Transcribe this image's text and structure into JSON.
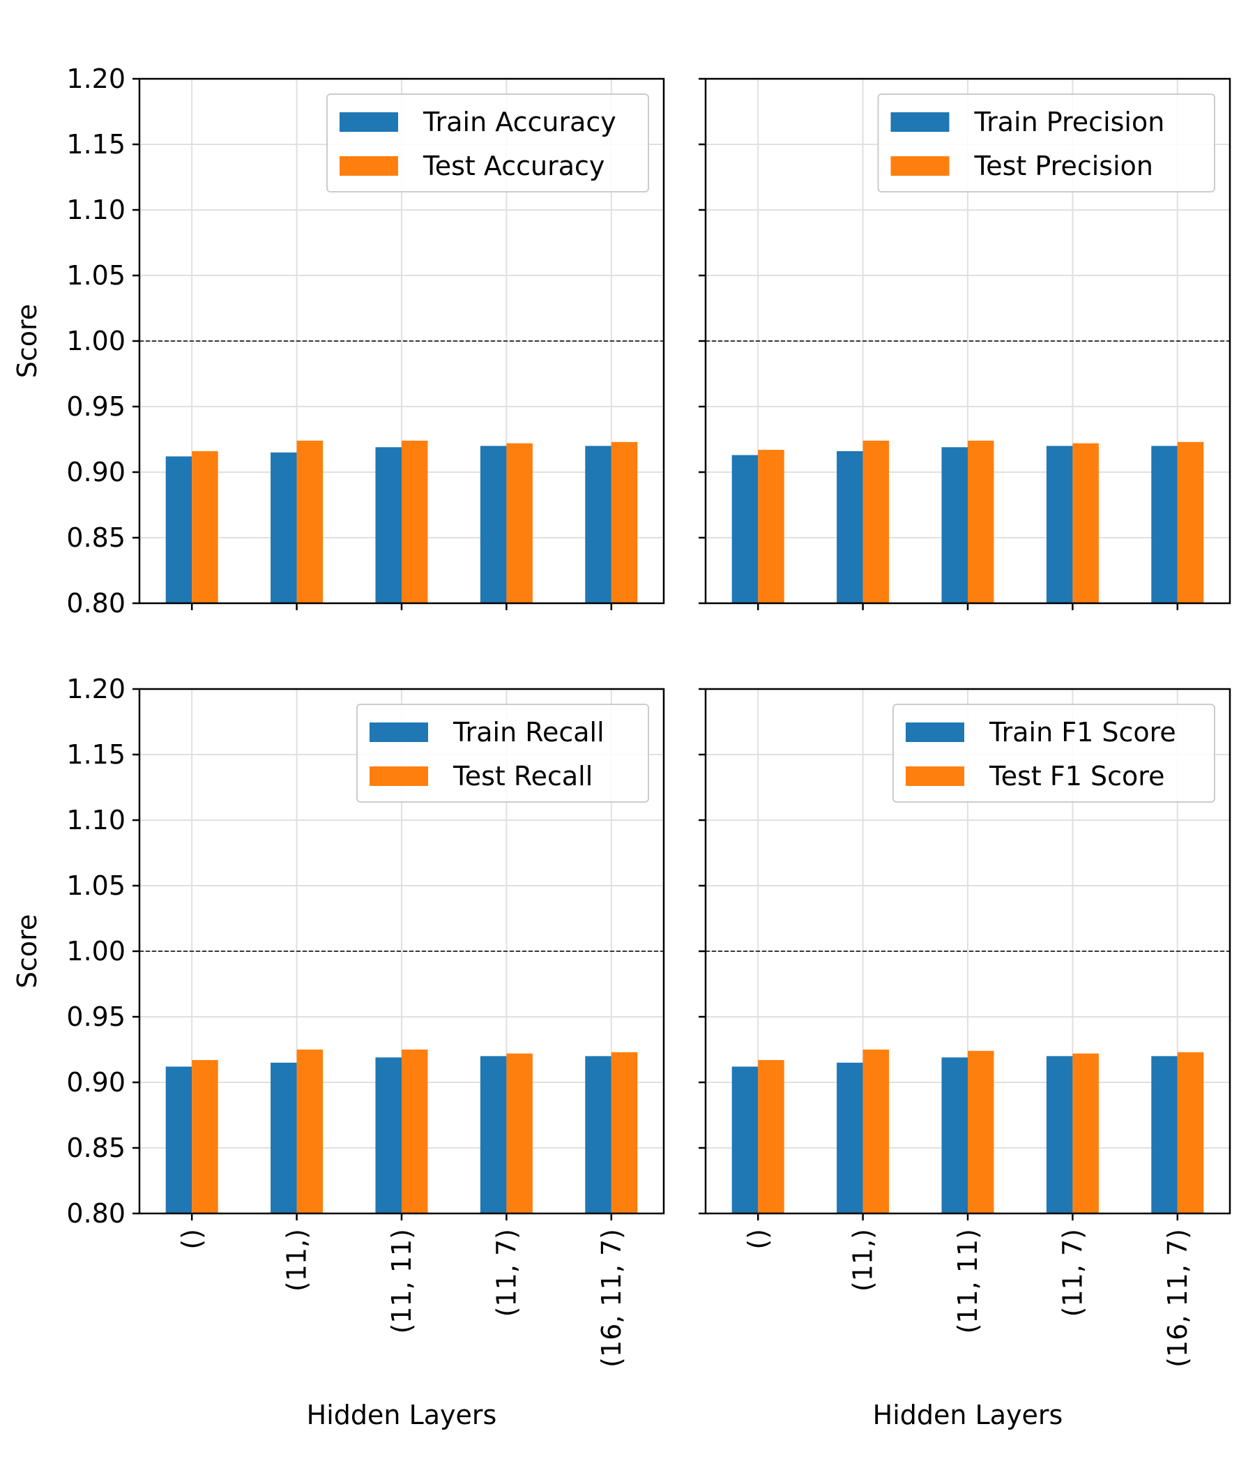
{
  "chart_data": [
    {
      "type": "bar",
      "title": "",
      "xlabel": "",
      "ylabel": "Score",
      "ylim": [
        0.8,
        1.2
      ],
      "yticks": [
        "0.80",
        "0.85",
        "0.90",
        "0.95",
        "1.00",
        "1.05",
        "1.10",
        "1.15",
        "1.20"
      ],
      "reference_line": 1.0,
      "grid": true,
      "legend_position": "upper right",
      "categories": [
        "()",
        "(11,)",
        "(11, 11)",
        "(11, 7)",
        "(16, 11, 7)"
      ],
      "series": [
        {
          "name": "Train Accuracy",
          "color": "#1f77b4",
          "values": [
            0.912,
            0.915,
            0.919,
            0.92,
            0.92
          ]
        },
        {
          "name": "Test Accuracy",
          "color": "#ff7f0e",
          "values": [
            0.916,
            0.924,
            0.924,
            0.922,
            0.923
          ]
        }
      ]
    },
    {
      "type": "bar",
      "title": "",
      "xlabel": "",
      "ylabel": "",
      "ylim": [
        0.8,
        1.2
      ],
      "yticks": [
        "0.80",
        "0.85",
        "0.90",
        "0.95",
        "1.00",
        "1.05",
        "1.10",
        "1.15",
        "1.20"
      ],
      "reference_line": 1.0,
      "grid": true,
      "legend_position": "upper right",
      "categories": [
        "()",
        "(11,)",
        "(11, 11)",
        "(11, 7)",
        "(16, 11, 7)"
      ],
      "series": [
        {
          "name": "Train Precision",
          "color": "#1f77b4",
          "values": [
            0.913,
            0.916,
            0.919,
            0.92,
            0.92
          ]
        },
        {
          "name": "Test Precision",
          "color": "#ff7f0e",
          "values": [
            0.917,
            0.924,
            0.924,
            0.922,
            0.923
          ]
        }
      ]
    },
    {
      "type": "bar",
      "title": "",
      "xlabel": "Hidden Layers",
      "ylabel": "Score",
      "ylim": [
        0.8,
        1.2
      ],
      "yticks": [
        "0.80",
        "0.85",
        "0.90",
        "0.95",
        "1.00",
        "1.05",
        "1.10",
        "1.15",
        "1.20"
      ],
      "reference_line": 1.0,
      "grid": true,
      "legend_position": "upper right",
      "categories": [
        "()",
        "(11,)",
        "(11, 11)",
        "(11, 7)",
        "(16, 11, 7)"
      ],
      "series": [
        {
          "name": "Train Recall",
          "color": "#1f77b4",
          "values": [
            0.912,
            0.915,
            0.919,
            0.92,
            0.92
          ]
        },
        {
          "name": "Test Recall",
          "color": "#ff7f0e",
          "values": [
            0.917,
            0.925,
            0.925,
            0.922,
            0.923
          ]
        }
      ]
    },
    {
      "type": "bar",
      "title": "",
      "xlabel": "Hidden Layers",
      "ylabel": "",
      "ylim": [
        0.8,
        1.2
      ],
      "yticks": [
        "0.80",
        "0.85",
        "0.90",
        "0.95",
        "1.00",
        "1.05",
        "1.10",
        "1.15",
        "1.20"
      ],
      "reference_line": 1.0,
      "grid": true,
      "legend_position": "upper right",
      "categories": [
        "()",
        "(11,)",
        "(11, 11)",
        "(11, 7)",
        "(16, 11, 7)"
      ],
      "series": [
        {
          "name": "Train F1 Score",
          "color": "#1f77b4",
          "values": [
            0.912,
            0.915,
            0.919,
            0.92,
            0.92
          ]
        },
        {
          "name": "Test F1 Score",
          "color": "#ff7f0e",
          "values": [
            0.917,
            0.925,
            0.924,
            0.922,
            0.923
          ]
        }
      ]
    }
  ]
}
